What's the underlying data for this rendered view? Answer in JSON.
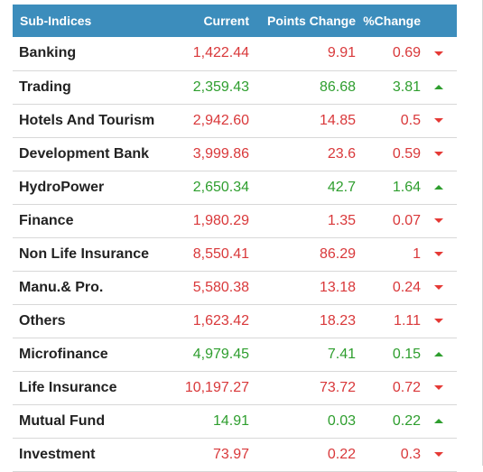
{
  "headers": {
    "name": "Sub-Indices",
    "current": "Current",
    "points_change": "Points Change",
    "pct_change": "%Change"
  },
  "rows": [
    {
      "name": "Banking",
      "current": "1,422.44",
      "points": "9.91",
      "pct": "0.69",
      "direction": "down"
    },
    {
      "name": "Trading",
      "current": "2,359.43",
      "points": "86.68",
      "pct": "3.81",
      "direction": "up"
    },
    {
      "name": "Hotels And Tourism",
      "current": "2,942.60",
      "points": "14.85",
      "pct": "0.5",
      "direction": "down"
    },
    {
      "name": "Development Bank",
      "current": "3,999.86",
      "points": "23.6",
      "pct": "0.59",
      "direction": "down"
    },
    {
      "name": "HydroPower",
      "current": "2,650.34",
      "points": "42.7",
      "pct": "1.64",
      "direction": "up"
    },
    {
      "name": "Finance",
      "current": "1,980.29",
      "points": "1.35",
      "pct": "0.07",
      "direction": "down"
    },
    {
      "name": "Non Life Insurance",
      "current": "8,550.41",
      "points": "86.29",
      "pct": "1",
      "direction": "down"
    },
    {
      "name": "Manu.& Pro.",
      "current": "5,580.38",
      "points": "13.18",
      "pct": "0.24",
      "direction": "down"
    },
    {
      "name": "Others",
      "current": "1,623.42",
      "points": "18.23",
      "pct": "1.11",
      "direction": "down"
    },
    {
      "name": "Microfinance",
      "current": "4,979.45",
      "points": "7.41",
      "pct": "0.15",
      "direction": "up"
    },
    {
      "name": "Life Insurance",
      "current": "10,197.27",
      "points": "73.72",
      "pct": "0.72",
      "direction": "down"
    },
    {
      "name": "Mutual Fund",
      "current": "14.91",
      "points": "0.03",
      "pct": "0.22",
      "direction": "up"
    },
    {
      "name": "Investment",
      "current": "73.97",
      "points": "0.22",
      "pct": "0.3",
      "direction": "down"
    }
  ],
  "colors": {
    "header_bg": "#3c8dbc",
    "up": "#2e9e2e",
    "down": "#d9383a"
  }
}
